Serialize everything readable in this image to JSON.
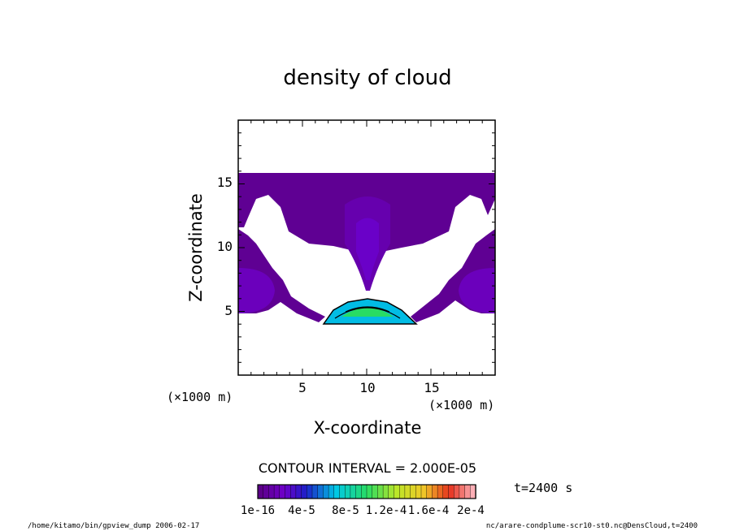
{
  "chart_data": {
    "type": "heatmap",
    "subtype": "filled-contour",
    "title": "density of cloud",
    "xlabel": "X-coordinate",
    "ylabel": "Z-coordinate",
    "x_unit": "(×1000 m)",
    "y_unit": "(×1000 m)",
    "xlim": [
      0,
      20
    ],
    "ylim": [
      0,
      20
    ],
    "xticks": [
      5,
      10,
      15
    ],
    "yticks": [
      5,
      10,
      15
    ],
    "contour_interval_text": "CONTOUR INTERVAL = 2.000E-05",
    "time_text": "t=2400 s",
    "colorbar": {
      "min": 1e-16,
      "max": 0.0002,
      "tick_labels": [
        "1e-16",
        "4e-5",
        "8e-5",
        "1.2e-4",
        "1.6e-4",
        "2e-4"
      ],
      "levels": 40
    },
    "regions": [
      {
        "name": "upper cloud layer",
        "level": 6e-06
      },
      {
        "name": "central column",
        "level": 1.5e-05
      },
      {
        "name": "central core",
        "level": 2.5e-05
      },
      {
        "name": "left edge cell",
        "level": 2e-05
      },
      {
        "name": "right edge cell",
        "level": 2e-05
      },
      {
        "name": "lower dome",
        "level": 7e-05
      },
      {
        "name": "lower dome peak",
        "level": 0.0001
      }
    ]
  },
  "footer": {
    "left": "/home/kitamo/bin/gpview_dump  2006-02-17",
    "right": "nc/arare-condplume-scr10-st0.nc@DensCloud,t=2400"
  }
}
